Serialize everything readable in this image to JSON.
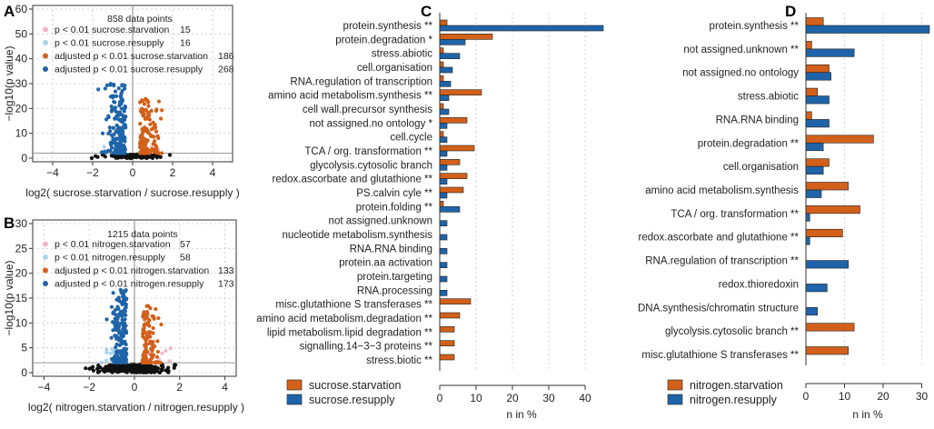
{
  "colors": {
    "starvation": "#d2601a",
    "resupply": "#1f64a8",
    "starvation_light": "#f5b6c9",
    "resupply_light": "#a8d4ea",
    "nonsig": "#111111"
  },
  "chart_data": [
    {
      "panel": "A",
      "type": "scatter",
      "title": "858 data points",
      "xlabel": "log2( sucrose.starvation  / sucrose.resupply  )",
      "ylabel": "−log10(p value)",
      "xlim": [
        -5,
        5
      ],
      "ylim": [
        0,
        60
      ],
      "xticks": [
        "−4",
        "−2",
        "0",
        "2",
        "4"
      ],
      "yticks": [
        "0",
        "10",
        "20",
        "30",
        "40",
        "50",
        "60"
      ],
      "grid": true,
      "legend": [
        {
          "label": "p < 0.01 sucrose.starvation",
          "count": "15",
          "color": "#f5b6c9"
        },
        {
          "label": "p < 0.01 sucrose.resupply",
          "count": "16",
          "color": "#a8d4ea"
        },
        {
          "label": "adjusted p < 0.01 sucrose.starvation",
          "count": "186",
          "color": "#d2601a"
        },
        {
          "label": "adjusted p < 0.01 sucrose.resupply",
          "count": "268",
          "color": "#1f64a8"
        }
      ],
      "seed": 11
    },
    {
      "panel": "B",
      "type": "scatter",
      "title": "1215 data points",
      "xlabel": "log2( nitrogen.starvation  / nitrogen.resupply  )",
      "ylabel": "−log10(p value)",
      "xlim": [
        -4.5,
        4.5
      ],
      "ylim": [
        0,
        30
      ],
      "xticks": [
        "−4",
        "−2",
        "0",
        "2",
        "4"
      ],
      "yticks": [
        "0",
        "5",
        "10",
        "15",
        "20",
        "25",
        "30"
      ],
      "grid": true,
      "legend": [
        {
          "label": "p < 0.01 nitrogen.starvation",
          "count": "57",
          "color": "#f5b6c9"
        },
        {
          "label": "p < 0.01 nitrogen.resupply",
          "count": "58",
          "color": "#a8d4ea"
        },
        {
          "label": "adjusted p < 0.01 nitrogen.starvation",
          "count": "133",
          "color": "#d2601a"
        },
        {
          "label": "adjusted p < 0.01 nitrogen.resupply",
          "count": "173",
          "color": "#1f64a8"
        }
      ],
      "seed": 29
    },
    {
      "panel": "C",
      "type": "bar",
      "orientation": "horizontal",
      "xlabel": "n in %",
      "xlim": [
        0,
        45
      ],
      "xticks": [
        "0",
        "10",
        "20",
        "30",
        "40"
      ],
      "grid": true,
      "categories": [
        "protein.synthesis **",
        "protein.degradation *",
        "stress.abiotic",
        "cell.organisation",
        "RNA.regulation of transcription",
        "amino acid metabolism.synthesis **",
        "cell wall.precursor synthesis",
        "not assigned.no ontology *",
        "cell.cycle",
        "TCA / org. transformation **",
        "glycolysis.cytosolic branch",
        "redox.ascorbate and glutathione **",
        "PS.calvin cyle **",
        "protein.folding **",
        "not assigned.unknown",
        "nucleotide metabolism.synthesis",
        "RNA.RNA binding",
        "protein.aa activation",
        "protein.targeting",
        "RNA.processing",
        "misc.glutathione S transferases **",
        "amino acid metabolism.degradation **",
        "lipid metabolism.lipid degradation **",
        "signalling.14−3−3 proteins **",
        "stress.biotic **"
      ],
      "series": [
        {
          "name": "sucrose.starvation",
          "color": "#d2601a",
          "values": [
            2,
            14.5,
            1,
            1,
            1,
            11.5,
            1,
            7.5,
            1,
            9.5,
            5.5,
            7.5,
            6.5,
            1,
            0,
            0,
            0,
            0,
            0,
            0,
            8.5,
            5.5,
            4,
            4,
            4
          ]
        },
        {
          "name": "sucrose.resupply",
          "color": "#1f64a8",
          "values": [
            47,
            7,
            5.5,
            3.5,
            3,
            2.5,
            2.5,
            2,
            2,
            2,
            2,
            2,
            2,
            5.5,
            2,
            2,
            2,
            2,
            2,
            2,
            0,
            0,
            0,
            0,
            0
          ]
        }
      ],
      "legend_position": "bottom-left"
    },
    {
      "panel": "D",
      "type": "bar",
      "orientation": "horizontal",
      "xlabel": "n in %",
      "xlim": [
        0,
        32
      ],
      "xticks": [
        "0",
        "10",
        "20",
        "30"
      ],
      "grid": true,
      "categories": [
        "protein.synthesis **",
        "not assigned.unknown **",
        "not assigned.no ontology",
        "stress.abiotic",
        "RNA.RNA binding",
        "protein.degradation **",
        "cell.organisation",
        "amino acid metabolism.synthesis",
        "TCA / org. transformation **",
        "redox.ascorbate and glutathione **",
        "RNA.regulation of transcription **",
        "redox.thioredoxin",
        "DNA.synthesis/chromatin structure",
        "glycolysis.cytosolic branch **",
        "misc.glutathione S transferases **"
      ],
      "series": [
        {
          "name": "nitrogen.starvation",
          "color": "#d2601a",
          "values": [
            4.5,
            1.5,
            6,
            3,
            1.5,
            17.5,
            6,
            11,
            14,
            9.5,
            0,
            0,
            0,
            12.5,
            11
          ]
        },
        {
          "name": "nitrogen.resupply",
          "color": "#1f64a8",
          "values": [
            33,
            12.5,
            6.5,
            6,
            6,
            4.5,
            4.5,
            4,
            1,
            1,
            11,
            5.5,
            3,
            0,
            0
          ]
        }
      ],
      "legend_position": "bottom-left"
    }
  ]
}
